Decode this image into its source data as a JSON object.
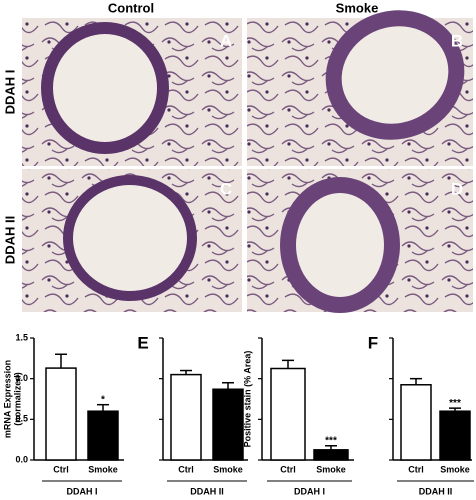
{
  "figure": {
    "columns": [
      "Control",
      "Smoke"
    ],
    "rows": [
      "DDAH I",
      "DDAH II"
    ],
    "panels": [
      "A",
      "B",
      "C",
      "D"
    ]
  },
  "chart_data": [
    {
      "type": "bar",
      "ylabel": [
        "mRNA Expression",
        "(normalized)"
      ],
      "xlabel": "DDAH I",
      "categories": [
        "Ctrl",
        "Smoke"
      ],
      "values": [
        1.13,
        0.6
      ],
      "errors": [
        0.17,
        0.08
      ],
      "value_annotations": [
        null,
        "*"
      ],
      "colors": [
        "#ffffff",
        "#000000"
      ],
      "ylim": [
        0,
        1.5
      ],
      "yticks": [
        {
          "value": 0,
          "label": "0.0"
        },
        {
          "value": 0.5,
          "label": "0.5"
        },
        {
          "value": 1,
          "label": "1.0"
        },
        {
          "value": 1.5,
          "label": "1.5"
        }
      ],
      "show_tick_labels": true
    },
    {
      "type": "bar",
      "xlabel": "DDAH II",
      "panel": "E",
      "categories": [
        "Ctrl",
        "Smoke"
      ],
      "values": [
        1.05,
        0.87
      ],
      "errors": [
        0.05,
        0.08
      ],
      "colors": [
        "#ffffff",
        "#000000"
      ],
      "ylim": [
        0,
        1.5
      ],
      "yticks": [
        0,
        0.5,
        1,
        1.5
      ],
      "show_tick_labels": false
    },
    {
      "type": "bar",
      "ylabel": [
        "Positive stain (% Area)"
      ],
      "xlabel": "DDAH I",
      "categories": [
        "Ctrl",
        "Smoke"
      ],
      "values": [
        45,
        5
      ],
      "errors": [
        4,
        2
      ],
      "value_annotations": [
        null,
        "***"
      ],
      "colors": [
        "#ffffff",
        "#000000"
      ],
      "ylim": [
        0,
        60
      ],
      "yticks": [
        0,
        20,
        40,
        60
      ],
      "show_tick_labels": false
    },
    {
      "type": "bar",
      "xlabel": "DDAH II",
      "panel": "F",
      "categories": [
        "Ctrl",
        "Smoke"
      ],
      "values": [
        37,
        24
      ],
      "errors": [
        3,
        1.5
      ],
      "value_annotations": [
        null,
        "***"
      ],
      "colors": [
        "#ffffff",
        "#000000"
      ],
      "ylim": [
        0,
        60
      ],
      "yticks": [
        0,
        20,
        40,
        60
      ],
      "show_tick_labels": false
    }
  ]
}
